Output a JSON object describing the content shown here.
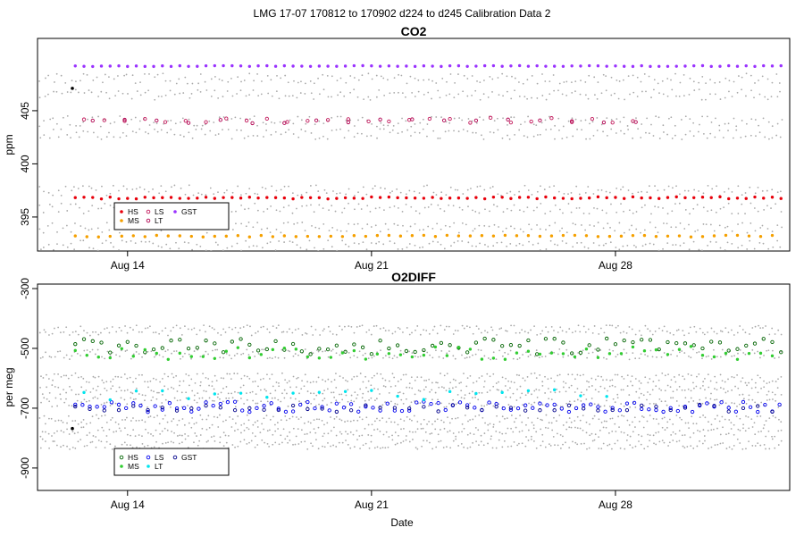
{
  "figure": {
    "suptitle": "LMG   17-07    170812 to 170902    d224 to d245   Calibration Data 2",
    "xlabel": "Date"
  },
  "colors": {
    "HS_co2": "#e8000b",
    "MS_co2": "#f5a000",
    "LS_co2": "#c2185b",
    "LT_co2": "#b0004f",
    "GST_co2": "#9a32ff",
    "HS_o2": "#006400",
    "MS_o2": "#32cd32",
    "LS_o2": "#0000ee",
    "LT_o2": "#00e5ee",
    "GST_o2": "#00008b",
    "background_points": "#a9a9a9",
    "marker": "#000000"
  },
  "chart_data": [
    {
      "id": "co2",
      "type": "scatter",
      "title": "CO2",
      "xlabel": "",
      "ylabel": "ppm",
      "x_type": "date",
      "xlim": [
        "2017-08-11T10:00",
        "2017-09-02T00:00"
      ],
      "ylim": [
        391.8,
        411.8
      ],
      "x_ticks": [
        {
          "date": "2017-08-14",
          "label": "Aug 14"
        },
        {
          "date": "2017-08-21",
          "label": "Aug 21"
        },
        {
          "date": "2017-08-28",
          "label": "Aug 28"
        }
      ],
      "y_ticks": [
        395,
        400,
        405
      ],
      "grid": false,
      "legend": {
        "position": "bottom-left",
        "columns": [
          [
            "HS",
            "MS"
          ],
          [
            "LS",
            "LT"
          ],
          [
            "GST"
          ]
        ]
      },
      "series": [
        {
          "name": "HS",
          "marker": "circle-filled",
          "level": 396.8,
          "jitter": 0.1,
          "start": "2017-08-12T12:00",
          "end": "2017-09-01T18:00",
          "step_hours": 6
        },
        {
          "name": "MS",
          "marker": "circle-filled",
          "level": 393.2,
          "jitter": 0.08,
          "start": "2017-08-12T12:00",
          "end": "2017-09-01T18:00",
          "step_hours": 8
        },
        {
          "name": "LS",
          "marker": "circle-open",
          "level": 404.1,
          "jitter": 0.25,
          "start": "2017-08-12T18:00",
          "end": "2017-08-29T00:00",
          "step_hours": 14
        },
        {
          "name": "LT",
          "marker": "circle-open",
          "level": 404.0,
          "jitter": 0.2,
          "start": "2017-08-13T00:00",
          "end": "2017-08-29T00:00",
          "step_hours": 22
        },
        {
          "name": "GST",
          "marker": "circle-filled",
          "level": 409.2,
          "jitter": 0.04,
          "start": "2017-08-12T12:00",
          "end": "2017-09-01T18:00",
          "step_hours": 6
        }
      ],
      "background_points": [
        {
          "start": "2017-08-11T12:00",
          "end": "2017-09-01T18:00",
          "step_hours": 3,
          "levels": [
            408.0,
            406.5,
            404.0,
            402.8,
            397.5,
            395.8,
            394.0,
            392.3
          ]
        }
      ],
      "markers": [
        {
          "date": "2017-08-12T10:00",
          "value": 407.1
        }
      ]
    },
    {
      "id": "o2diff",
      "type": "scatter",
      "title": "O2DIFF",
      "xlabel": "Date",
      "ylabel": "per meg",
      "x_type": "date",
      "xlim": [
        "2017-08-11T10:00",
        "2017-09-02T00:00"
      ],
      "ylim": [
        -975,
        -285
      ],
      "x_ticks": [
        {
          "date": "2017-08-14",
          "label": "Aug 14"
        },
        {
          "date": "2017-08-21",
          "label": "Aug 21"
        },
        {
          "date": "2017-08-28",
          "label": "Aug 28"
        }
      ],
      "y_ticks": [
        -300,
        -500,
        -700,
        -900
      ],
      "grid": false,
      "legend": {
        "position": "bottom-left",
        "columns": [
          [
            "HS",
            "MS"
          ],
          [
            "LS",
            "LT"
          ],
          [
            "GST"
          ]
        ]
      },
      "series": [
        {
          "name": "HS",
          "marker": "circle-open",
          "level": -495,
          "jitter": 28,
          "start": "2017-08-12T12:00",
          "end": "2017-09-01T18:00",
          "step_hours": 6
        },
        {
          "name": "MS",
          "marker": "circle-filled",
          "level": -515,
          "jitter": 22,
          "start": "2017-08-12T12:00",
          "end": "2017-09-01T18:00",
          "step_hours": 8
        },
        {
          "name": "LS",
          "marker": "circle-open",
          "level": -695,
          "jitter": 18,
          "start": "2017-08-12T12:00",
          "end": "2017-09-01T18:00",
          "step_hours": 5
        },
        {
          "name": "LT",
          "marker": "circle-filled",
          "level": -655,
          "jitter": 18,
          "start": "2017-08-12T18:00",
          "end": "2017-08-28T00:00",
          "step_hours": 18
        },
        {
          "name": "GST",
          "marker": "circle-open",
          "level": -700,
          "jitter": 12,
          "start": "2017-08-12T12:00",
          "end": "2017-09-01T18:00",
          "step_hours": 10
        }
      ],
      "background_points": [
        {
          "start": "2017-08-11T12:00",
          "end": "2017-09-01T18:00",
          "step_hours": 2,
          "levels": [
            -440,
            -520,
            -600,
            -640,
            -680,
            -740,
            -780,
            -820
          ]
        }
      ],
      "markers": [
        {
          "date": "2017-08-12T10:00",
          "value": -768
        }
      ]
    }
  ]
}
